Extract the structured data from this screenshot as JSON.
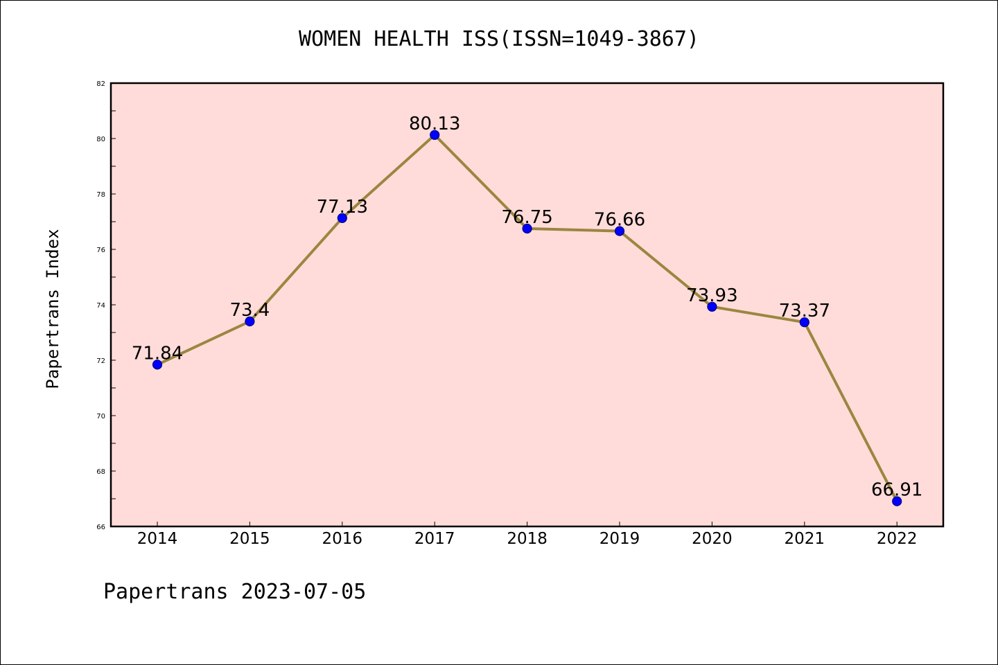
{
  "chart_data": {
    "type": "line",
    "title": "WOMEN HEALTH ISS(ISSN=1049-3867)",
    "ylabel": "Papertrans Index",
    "xlabel": "",
    "categories": [
      "2014",
      "2015",
      "2016",
      "2017",
      "2018",
      "2019",
      "2020",
      "2021",
      "2022"
    ],
    "series": [
      {
        "values": [
          71.84,
          73.4,
          77.13,
          80.13,
          76.75,
          76.66,
          73.93,
          73.37,
          66.91
        ],
        "data_labels": [
          "71.84",
          "73.4",
          "77.13",
          "80.13",
          "76.75",
          "76.66",
          "73.93",
          "73.37",
          "66.91"
        ]
      }
    ],
    "ylim": [
      66,
      82
    ],
    "yticks": [
      "66",
      "68",
      "70",
      "72",
      "74",
      "76",
      "78",
      "80",
      "82"
    ],
    "grid": false,
    "legend": "none",
    "colors": {
      "plot_background": "#ffdcd9",
      "line": "#9b8640",
      "marker": "#0000ff",
      "marker_edge": "#000080"
    }
  },
  "footer": "Papertrans 2023-07-05"
}
